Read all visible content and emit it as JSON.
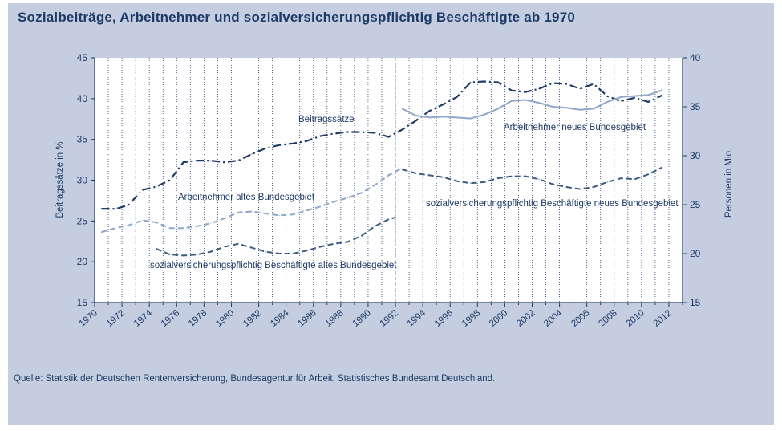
{
  "title": "Sozialbeiträge, Arbeitnehmer und sozialversicherungspflichtig Beschäftigte ab 1970",
  "source": "Quelle: Statistik der Deutschen Rentenversicherung, Bundesagentur für Arbeit, Statistisches Bundesamt Deutschland.",
  "colors": {
    "panel": "#c5cde0",
    "dark": "#1e3a66",
    "light": "#8fa7c8"
  },
  "chart_data": {
    "type": "line",
    "xlim": [
      1970,
      2013
    ],
    "xticks": [
      "1970",
      "1972",
      "1974",
      "1976",
      "1978",
      "1980",
      "1982",
      "1984",
      "1986",
      "1988",
      "1990",
      "1992",
      "1994",
      "1996",
      "1998",
      "2000",
      "2002",
      "2004",
      "2006",
      "2008",
      "2010",
      "2012"
    ],
    "ylabel_left": "Beitragssätze in %",
    "ylabel_right": "Personen in Mio.",
    "ylim_left": [
      15,
      45
    ],
    "yticks_left": [
      "15",
      "20",
      "25",
      "30",
      "35",
      "40",
      "45"
    ],
    "ylim_right": [
      15,
      40
    ],
    "yticks_right": [
      "15",
      "20",
      "25",
      "30",
      "35",
      "40"
    ],
    "vertical_gridlines": "dotted, every year",
    "series": [
      {
        "name": "Beitragssätze",
        "axis": "left",
        "style": "dark-dashdot",
        "points": [
          [
            1970.5,
            26.5
          ],
          [
            1971.6,
            26.5
          ],
          [
            1972.5,
            27.0
          ],
          [
            1973.5,
            28.8
          ],
          [
            1974.5,
            29.2
          ],
          [
            1975.5,
            30.0
          ],
          [
            1976.5,
            32.2
          ],
          [
            1977.5,
            32.4
          ],
          [
            1978.5,
            32.4
          ],
          [
            1979.5,
            32.2
          ],
          [
            1980.5,
            32.4
          ],
          [
            1981.5,
            33.2
          ],
          [
            1982.5,
            33.9
          ],
          [
            1983.5,
            34.3
          ],
          [
            1984.5,
            34.5
          ],
          [
            1985.5,
            34.8
          ],
          [
            1986.5,
            35.4
          ],
          [
            1987.5,
            35.7
          ],
          [
            1988.5,
            35.9
          ],
          [
            1989.5,
            35.9
          ],
          [
            1990.5,
            35.8
          ],
          [
            1991.5,
            35.3
          ],
          [
            1992.5,
            36.2
          ],
          [
            1993.5,
            37.3
          ],
          [
            1994.5,
            38.5
          ],
          [
            1995.5,
            39.3
          ],
          [
            1996.5,
            40.2
          ],
          [
            1997.5,
            42.0
          ],
          [
            1998.5,
            42.1
          ],
          [
            1999.5,
            42.0
          ],
          [
            2000.5,
            41.0
          ],
          [
            2001.5,
            40.8
          ],
          [
            2002.5,
            41.2
          ],
          [
            2003.5,
            41.9
          ],
          [
            2004.5,
            41.8
          ],
          [
            2005.5,
            41.2
          ],
          [
            2006.5,
            41.8
          ],
          [
            2007.5,
            40.3
          ],
          [
            2008.5,
            39.7
          ],
          [
            2009.5,
            40.1
          ],
          [
            2010.5,
            39.6
          ],
          [
            2011.5,
            40.4
          ]
        ]
      },
      {
        "name": "Arbeitnehmer altes Bundesgebiet",
        "axis": "right",
        "style": "light-dashed",
        "points": [
          [
            1970.5,
            22.2
          ],
          [
            1971.5,
            22.6
          ],
          [
            1972.5,
            22.9
          ],
          [
            1973.5,
            23.4
          ],
          [
            1974.5,
            23.2
          ],
          [
            1975.5,
            22.6
          ],
          [
            1976.5,
            22.6
          ],
          [
            1977.5,
            22.8
          ],
          [
            1978.5,
            23.1
          ],
          [
            1979.5,
            23.6
          ],
          [
            1980.5,
            24.2
          ],
          [
            1981.5,
            24.3
          ],
          [
            1982.5,
            24.1
          ],
          [
            1983.5,
            23.9
          ],
          [
            1984.5,
            24.0
          ],
          [
            1985.5,
            24.4
          ],
          [
            1986.5,
            24.8
          ],
          [
            1987.5,
            25.3
          ],
          [
            1988.5,
            25.7
          ],
          [
            1989.5,
            26.2
          ],
          [
            1990.5,
            27.0
          ],
          [
            1991.5,
            28.0
          ],
          [
            1992.3,
            28.6
          ]
        ]
      },
      {
        "name": "sozialversicherungspflichtig Beschäftigte altes Bundesgebiet",
        "axis": "right",
        "style": "dark-dashed",
        "points": [
          [
            1974.5,
            20.5
          ],
          [
            1975.5,
            19.9
          ],
          [
            1976.5,
            19.8
          ],
          [
            1977.5,
            19.9
          ],
          [
            1978.5,
            20.2
          ],
          [
            1979.5,
            20.7
          ],
          [
            1980.5,
            21.0
          ],
          [
            1981.5,
            20.6
          ],
          [
            1982.5,
            20.2
          ],
          [
            1983.5,
            20.0
          ],
          [
            1984.5,
            20.0
          ],
          [
            1985.5,
            20.3
          ],
          [
            1986.5,
            20.7
          ],
          [
            1987.5,
            21.0
          ],
          [
            1988.5,
            21.2
          ],
          [
            1989.5,
            21.8
          ],
          [
            1990.5,
            22.8
          ],
          [
            1991.5,
            23.5
          ],
          [
            1992.0,
            23.7
          ]
        ]
      },
      {
        "name": "Arbeitnehmer neues Bundesgebiet",
        "axis": "right",
        "style": "light-solid",
        "points": [
          [
            1992.5,
            34.8
          ],
          [
            1993.5,
            34.1
          ],
          [
            1994.5,
            33.9
          ],
          [
            1995.5,
            34.0
          ],
          [
            1996.5,
            33.9
          ],
          [
            1997.5,
            33.8
          ],
          [
            1998.5,
            34.2
          ],
          [
            1999.5,
            34.8
          ],
          [
            2000.5,
            35.6
          ],
          [
            2001.5,
            35.7
          ],
          [
            2002.5,
            35.4
          ],
          [
            2003.5,
            35.0
          ],
          [
            2004.5,
            34.9
          ],
          [
            2005.5,
            34.7
          ],
          [
            2006.5,
            34.8
          ],
          [
            2007.5,
            35.5
          ],
          [
            2008.5,
            36.0
          ],
          [
            2009.5,
            36.1
          ],
          [
            2010.5,
            36.2
          ],
          [
            2011.5,
            36.7
          ]
        ]
      },
      {
        "name": "sozialversicherungspflichtig Beschäftigte neues Bundesgebiet",
        "axis": "right",
        "style": "dark-dashed",
        "points": [
          [
            1992.5,
            28.6
          ],
          [
            1993.5,
            28.2
          ],
          [
            1994.5,
            28.0
          ],
          [
            1995.5,
            27.8
          ],
          [
            1996.5,
            27.4
          ],
          [
            1997.5,
            27.2
          ],
          [
            1998.5,
            27.3
          ],
          [
            1999.5,
            27.7
          ],
          [
            2000.5,
            27.9
          ],
          [
            2001.5,
            27.9
          ],
          [
            2002.5,
            27.6
          ],
          [
            2003.5,
            27.1
          ],
          [
            2004.5,
            26.8
          ],
          [
            2005.5,
            26.6
          ],
          [
            2006.5,
            26.8
          ],
          [
            2007.5,
            27.3
          ],
          [
            2008.5,
            27.7
          ],
          [
            2009.5,
            27.6
          ],
          [
            2010.5,
            28.1
          ],
          [
            2011.5,
            28.8
          ]
        ]
      }
    ],
    "annotations": [
      "Beitragssätze",
      "Arbeitnehmer altes Bundesgebiet",
      "sozialversicherungspflichtig Beschäftigte altes Bundesgebiet",
      "Arbeitnehmer neues Bundesgebiet",
      "sozialversicherungspflichtig Beschäftigte neues Bundesgebiet"
    ],
    "divider_year": 1992
  }
}
